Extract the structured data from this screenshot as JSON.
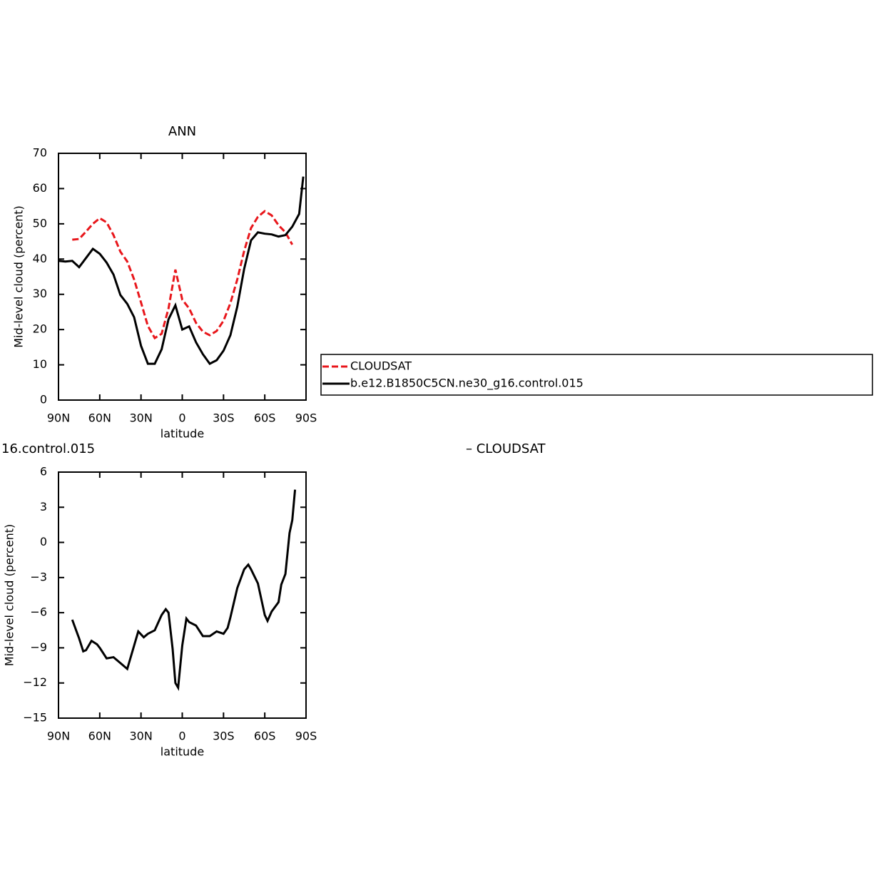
{
  "chart_data": [
    {
      "type": "line",
      "title": "ANN",
      "xlabel": "latitude",
      "ylabel": "Mid-level cloud (percent)",
      "x": [
        90,
        85,
        80,
        75,
        70,
        65,
        60,
        55,
        50,
        45,
        40,
        35,
        30,
        25,
        20,
        15,
        10,
        5,
        0,
        -5,
        -10,
        -15,
        -20,
        -25,
        -30,
        -35,
        -40,
        -45,
        -50,
        -55,
        -60,
        -65,
        -70,
        -75,
        -80,
        -85,
        -88
      ],
      "xlim": [
        90,
        -90
      ],
      "xticks": [
        {
          "value": 90,
          "label": "90N"
        },
        {
          "value": 60,
          "label": "60N"
        },
        {
          "value": 30,
          "label": "30N"
        },
        0,
        {
          "value": -30,
          "label": "30S"
        },
        {
          "value": -60,
          "label": "60S"
        },
        {
          "value": -90,
          "label": "90S"
        }
      ],
      "ylim": [
        0,
        70
      ],
      "yticks": [
        0,
        10,
        20,
        30,
        40,
        50,
        60,
        70
      ],
      "legend": "right",
      "series": [
        {
          "name": "CLOUDSAT",
          "color": "#e8161b",
          "dashed": true,
          "values": [
            null,
            null,
            45.5,
            45.7,
            47.8,
            50,
            51.6,
            50.4,
            46.8,
            42.1,
            39.3,
            34.2,
            27.7,
            21,
            17.6,
            18.8,
            26,
            37,
            28.5,
            26,
            21.9,
            19.4,
            18.4,
            19.6,
            22.5,
            27.5,
            34.2,
            42.3,
            48.8,
            52,
            53.6,
            52.4,
            49.6,
            47.6,
            44.1,
            null,
            null
          ]
        },
        {
          "name": "b.e12.B1850C5CN.ne30_g16.control.015",
          "color": "#000000",
          "dashed": false,
          "values": [
            39.5,
            39.3,
            39.5,
            37.7,
            40.3,
            42.9,
            41.5,
            39,
            35.6,
            29.8,
            27.3,
            23.5,
            15.4,
            10.3,
            10.3,
            14.4,
            22.9,
            26.9,
            20,
            20.9,
            16.4,
            13,
            10.3,
            11.3,
            14,
            18.4,
            26.5,
            37.2,
            45.3,
            47.6,
            47.2,
            47,
            46.4,
            46.8,
            49.2,
            52.8,
            63.4
          ]
        }
      ]
    },
    {
      "type": "line",
      "title_fragments": [
        "16.control.015",
        "– CLOUDSAT"
      ],
      "xlabel": "latitude",
      "ylabel": "Mid-level cloud (percent)",
      "x": [
        80,
        75,
        72,
        70,
        66,
        62,
        60,
        55,
        50,
        45,
        40,
        35,
        32,
        28,
        25,
        20,
        15,
        12,
        10,
        7,
        5,
        3,
        0,
        -3,
        -5,
        -10,
        -15,
        -20,
        -25,
        -30,
        -33,
        -35,
        -40,
        -45,
        -48,
        -50,
        -55,
        -60,
        -62,
        -65,
        -70,
        -72,
        -75,
        -78,
        -80,
        -82
      ],
      "xlim": [
        90,
        -90
      ],
      "xticks": [
        {
          "value": 90,
          "label": "90N"
        },
        {
          "value": 60,
          "label": "60N"
        },
        {
          "value": 30,
          "label": "30N"
        },
        0,
        {
          "value": -30,
          "label": "30S"
        },
        {
          "value": -60,
          "label": "60S"
        },
        {
          "value": -90,
          "label": "90S"
        }
      ],
      "ylim": [
        -15,
        6
      ],
      "yticks": [
        -15,
        -12,
        -9,
        -6,
        -3,
        0,
        3,
        6
      ],
      "color": "#000000",
      "values": [
        -6.6,
        -8.2,
        -9.3,
        -9.2,
        -8.4,
        -8.7,
        -9,
        -9.9,
        -9.8,
        -10.3,
        -10.8,
        -8.8,
        -7.6,
        -8.1,
        -7.8,
        -7.5,
        -6.2,
        -5.7,
        -6,
        -9.1,
        -12,
        -12.4,
        -8.8,
        -6.5,
        -6.8,
        -7.1,
        -8,
        -8,
        -7.6,
        -7.8,
        -7.3,
        -6.4,
        -3.9,
        -2.3,
        -1.9,
        -2.3,
        -3.5,
        -6.2,
        -6.7,
        -5.9,
        -5.1,
        -3.6,
        -2.7,
        0.8,
        1.9,
        4.5
      ]
    }
  ]
}
